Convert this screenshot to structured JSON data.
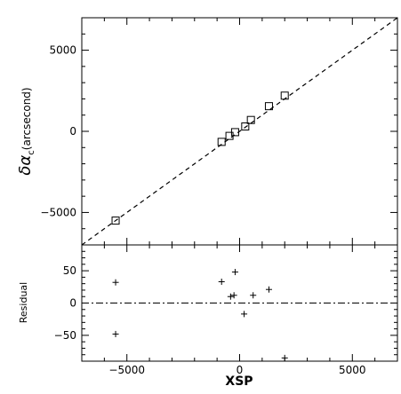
{
  "chart_data": [
    {
      "type": "scatter",
      "panel": "top",
      "ylabel_symbol": "δα",
      "ylabel_subscript": "c",
      "ylabel_unit": "(arcsecond)",
      "xlim": [
        -7000,
        7000
      ],
      "ylim": [
        -7000,
        7000
      ],
      "yticks": [
        -5000,
        0,
        5000
      ],
      "ytick_labels": [
        "−5000",
        "0",
        "5000"
      ],
      "fit_line": {
        "style": "dashed",
        "from": [
          -7000,
          -7000
        ],
        "to": [
          7000,
          7000
        ]
      },
      "marker": "open-square",
      "points": [
        {
          "x": -5500,
          "y": -5500
        },
        {
          "x": -800,
          "y": -650
        },
        {
          "x": -450,
          "y": -280
        },
        {
          "x": -200,
          "y": -50
        },
        {
          "x": 250,
          "y": 300
        },
        {
          "x": 500,
          "y": 700
        },
        {
          "x": 1300,
          "y": 1550
        },
        {
          "x": 2000,
          "y": 2200
        }
      ]
    },
    {
      "type": "scatter",
      "panel": "bottom",
      "xlabel": "XSP",
      "ylabel": "Residual",
      "xlim": [
        -7000,
        7000
      ],
      "ylim": [
        -90,
        90
      ],
      "xticks": [
        -5000,
        0,
        5000
      ],
      "xtick_labels": [
        "−5000",
        "0",
        "5000"
      ],
      "yticks": [
        -50,
        0,
        50
      ],
      "ytick_labels": [
        "−50",
        "0",
        "50"
      ],
      "zero_line": {
        "style": "dash-dot",
        "y": 0
      },
      "marker": "plus",
      "points": [
        {
          "x": -5500,
          "y": 32
        },
        {
          "x": -5500,
          "y": -48
        },
        {
          "x": -800,
          "y": 33
        },
        {
          "x": -400,
          "y": 10
        },
        {
          "x": -250,
          "y": 12
        },
        {
          "x": -200,
          "y": 48
        },
        {
          "x": 200,
          "y": -17
        },
        {
          "x": 600,
          "y": 12
        },
        {
          "x": 1300,
          "y": 21
        },
        {
          "x": 2000,
          "y": -85
        }
      ]
    }
  ]
}
